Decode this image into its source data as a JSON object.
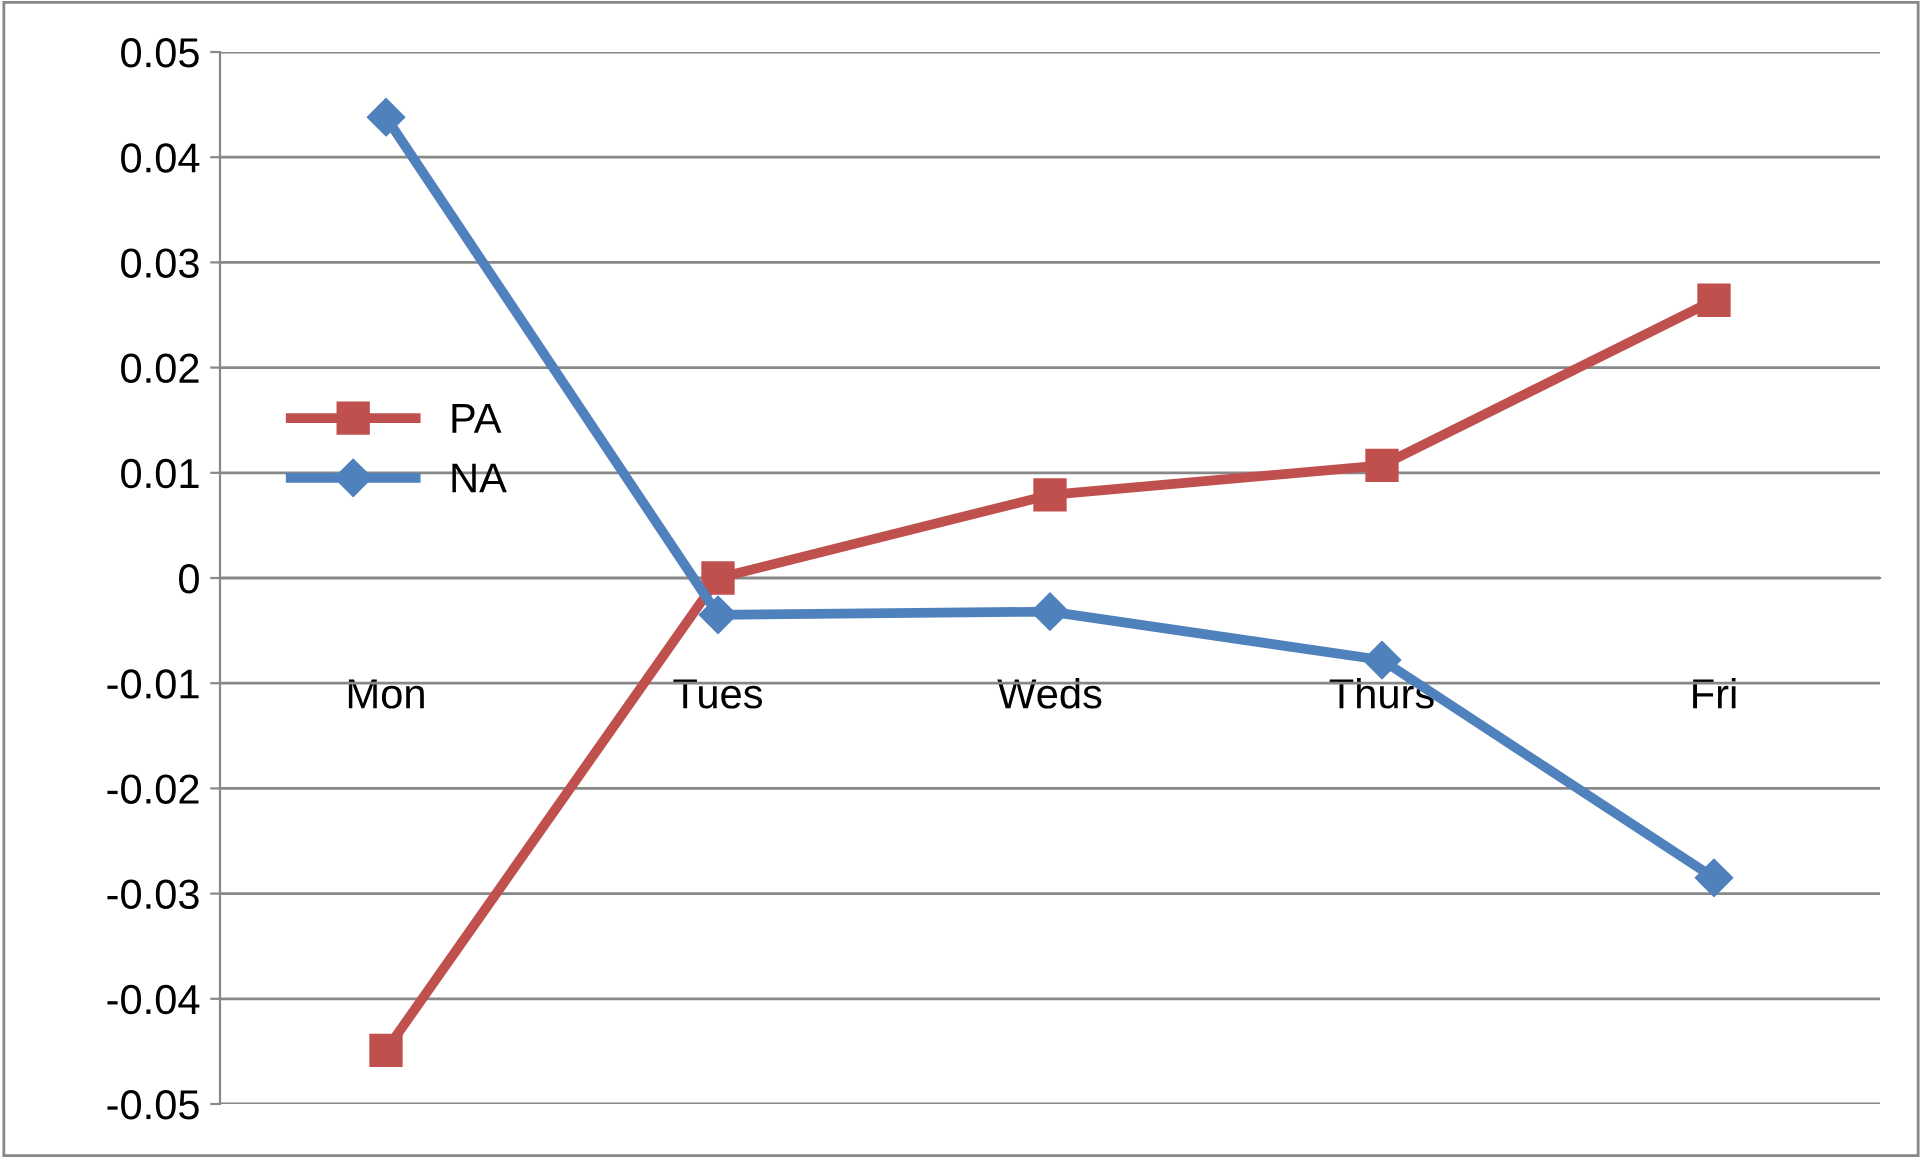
{
  "chart_data": {
    "type": "line",
    "categories": [
      "Mon",
      "Tues",
      "Weds",
      "Thurs",
      "Fri"
    ],
    "series": [
      {
        "name": "PA",
        "color": "#c0504d",
        "marker": "square",
        "values": [
          -0.0449,
          0.0,
          0.0079,
          0.0107,
          0.0264
        ]
      },
      {
        "name": "NA",
        "color": "#4f81bd",
        "marker": "diamond",
        "values": [
          0.0438,
          -0.0035,
          -0.0032,
          -0.0078,
          -0.0285
        ]
      }
    ],
    "ylim": [
      -0.05,
      0.05
    ],
    "yticks": [
      -0.05,
      -0.04,
      -0.03,
      -0.02,
      -0.01,
      0,
      0.01,
      0.02,
      0.03,
      0.04,
      0.05
    ],
    "grid": "y",
    "legend": "left"
  }
}
